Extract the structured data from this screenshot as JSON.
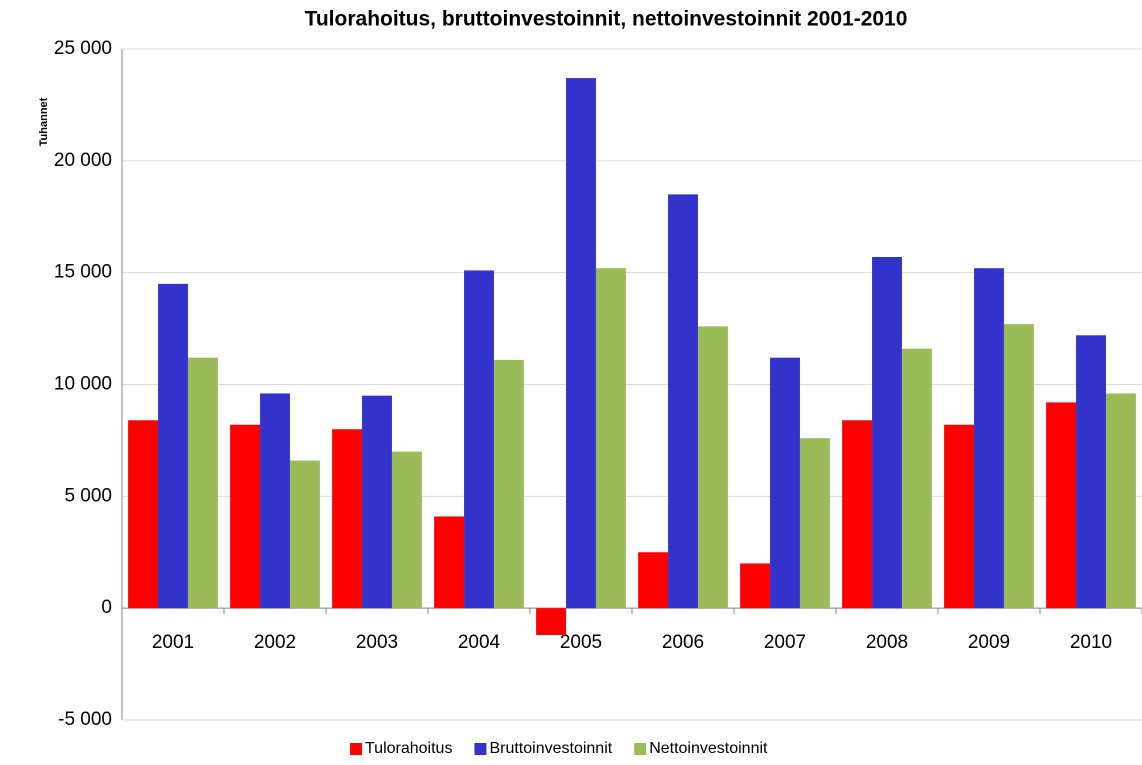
{
  "chart_data": {
    "type": "bar",
    "title": "Tulorahoitus, bruttoinvestoinnit, nettoinvestoinnit 2001-2010",
    "y_label": "Tuhannet",
    "categories": [
      "2001",
      "2002",
      "2003",
      "2004",
      "2005",
      "2006",
      "2007",
      "2008",
      "2009",
      "2010"
    ],
    "series": [
      {
        "name": "Tulorahoitus",
        "color": "#ff0000",
        "values": [
          8400,
          8200,
          8000,
          4100,
          -1200,
          2500,
          2000,
          8400,
          8200,
          9200
        ]
      },
      {
        "name": "Bruttoinvestoinnit",
        "color": "#3333cc",
        "values": [
          14500,
          9600,
          9500,
          15100,
          23700,
          18500,
          11200,
          15700,
          15200,
          12200
        ]
      },
      {
        "name": "Nettoinvestoinnit",
        "color": "#9bbb59",
        "values": [
          11200,
          6600,
          7000,
          11100,
          15200,
          12600,
          7600,
          11600,
          12700,
          9600
        ]
      }
    ],
    "ylim": [
      -5000,
      25000
    ],
    "yticks": [
      {
        "value": -5000,
        "label": "-5 000"
      },
      0,
      {
        "value": 5000,
        "label": "5 000"
      },
      {
        "value": 10000,
        "label": "10 000"
      },
      {
        "value": 15000,
        "label": "15 000"
      },
      {
        "value": 20000,
        "label": "20 000"
      },
      {
        "value": 25000,
        "label": "25 000"
      }
    ],
    "grid": true,
    "legend": "bottom"
  }
}
